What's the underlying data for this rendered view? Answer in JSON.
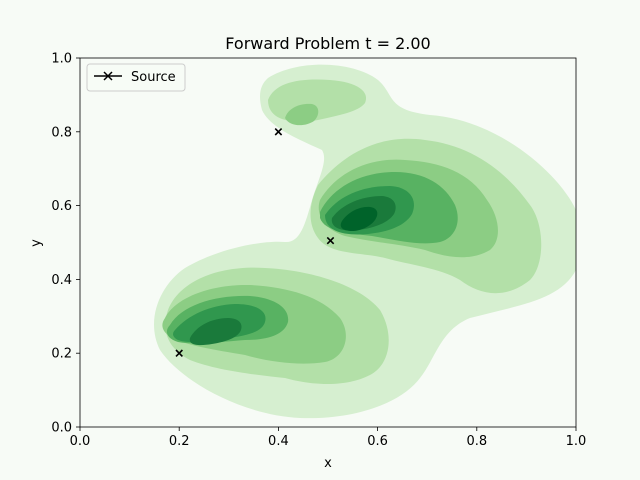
{
  "chart_data": {
    "type": "contour",
    "title": "Forward Problem t =  2.00",
    "xlabel": "x",
    "ylabel": "y",
    "xlim": [
      0.0,
      1.0
    ],
    "ylim": [
      0.0,
      1.0
    ],
    "xticks": [
      "0.0",
      "0.2",
      "0.4",
      "0.6",
      "0.8",
      "1.0"
    ],
    "yticks": [
      "0.0",
      "0.2",
      "0.4",
      "0.6",
      "0.8",
      "1.0"
    ],
    "grid": false,
    "legend": {
      "position": "top-left",
      "entries": [
        "Source"
      ]
    },
    "colormap": [
      "#d6efd0",
      "#b3e0a8",
      "#8ccd84",
      "#58b262",
      "#30974e",
      "#1a7a3b",
      "#00632a"
    ],
    "sources": [
      {
        "name": "Source",
        "points": [
          [
            0.2,
            0.2
          ],
          [
            0.4,
            0.8
          ],
          [
            0.505,
            0.505
          ]
        ]
      }
    ],
    "density_peaks": [
      {
        "x": 0.57,
        "y": 0.565,
        "level": 7
      },
      {
        "x": 0.27,
        "y": 0.26,
        "level": 6
      },
      {
        "x": 0.44,
        "y": 0.84,
        "level": 3
      }
    ]
  }
}
